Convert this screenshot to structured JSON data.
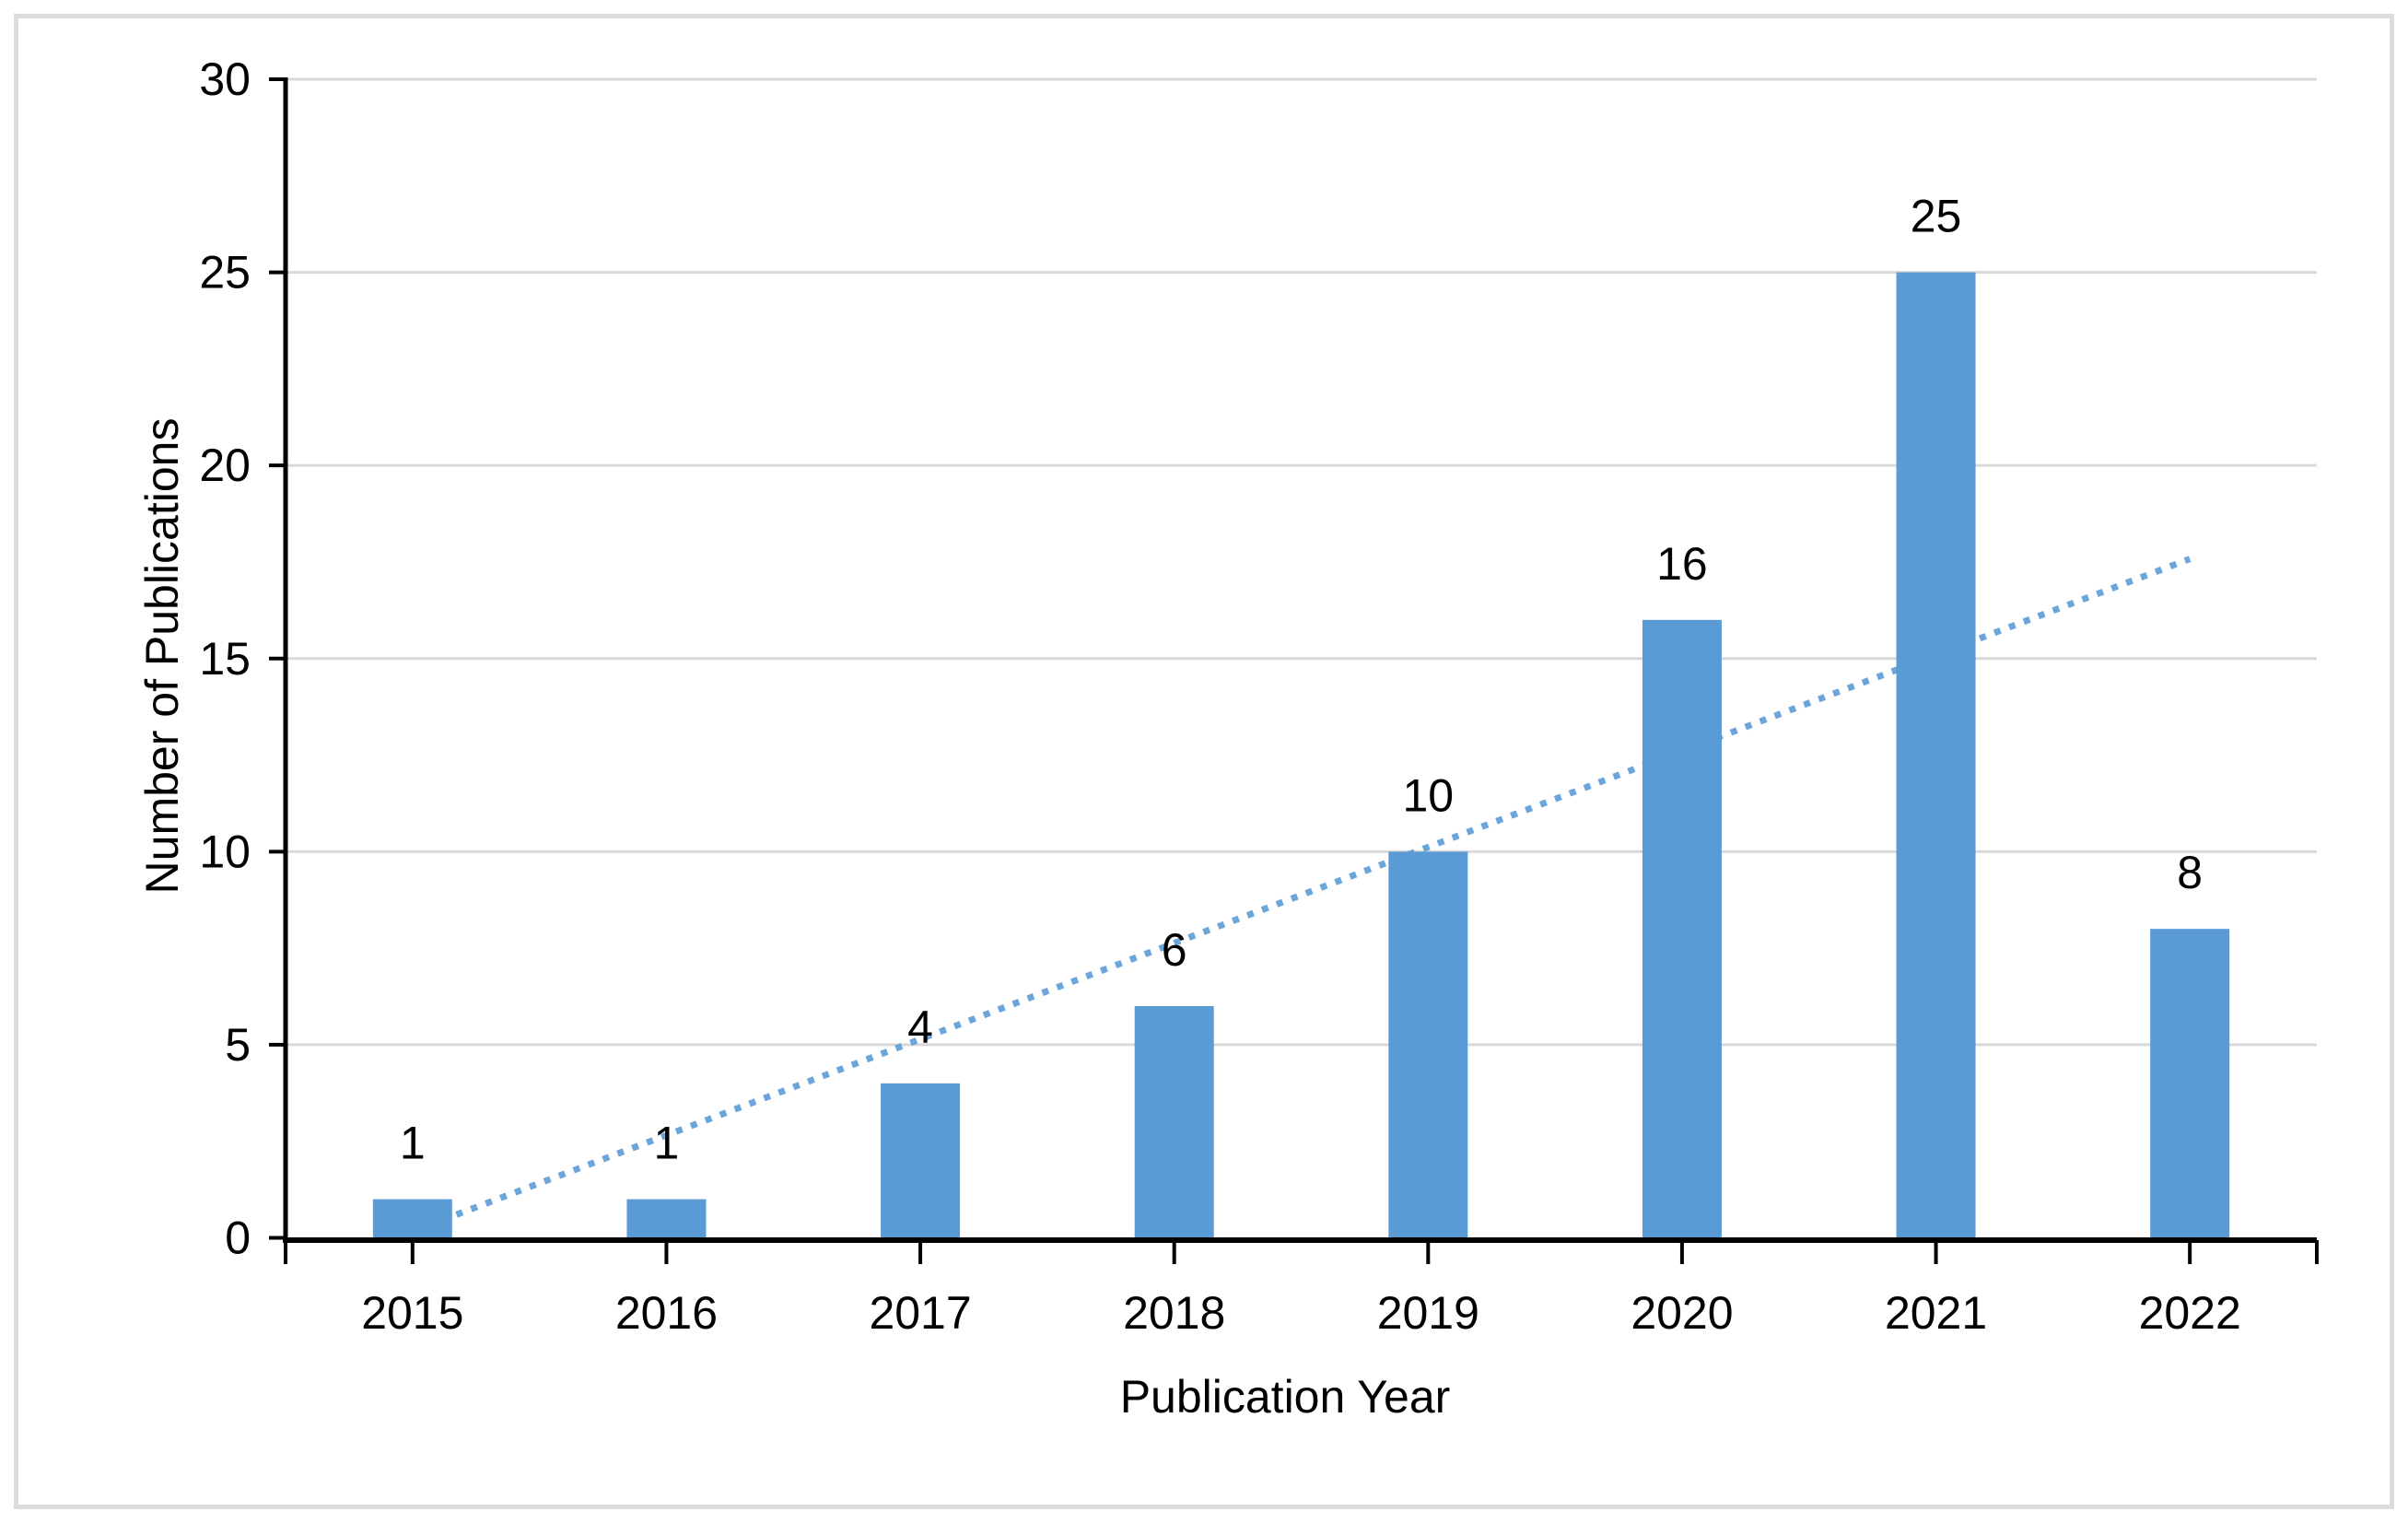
{
  "chart_data": {
    "type": "bar",
    "title": "",
    "categories": [
      "2015",
      "2016",
      "2017",
      "2018",
      "2019",
      "2020",
      "2021",
      "2022"
    ],
    "values": [
      1,
      1,
      4,
      6,
      10,
      16,
      25,
      8
    ],
    "data_labels": [
      "1",
      "1",
      "4",
      "6",
      "10",
      "16",
      "25",
      "8"
    ],
    "xlabel": "Publication Year",
    "ylabel": "Number of Publications",
    "ylim": [
      0,
      30
    ],
    "yticks": [
      0,
      5,
      10,
      15,
      20,
      25,
      30
    ],
    "grid": "horizontal",
    "legend": "none",
    "bar_color": "#5B9BD5",
    "trendline": {
      "type": "linear",
      "style": "dotted",
      "color": "#5B9BD5",
      "start": {
        "category": "2015",
        "value": 0.17
      },
      "end": {
        "category": "2022",
        "value": 17.58
      }
    },
    "colors": {
      "background": "#FFFFFF",
      "figure_border": "#DBDBDB",
      "gridline": "#D9D9D9",
      "axis": "#000000",
      "text": "#000000"
    }
  }
}
